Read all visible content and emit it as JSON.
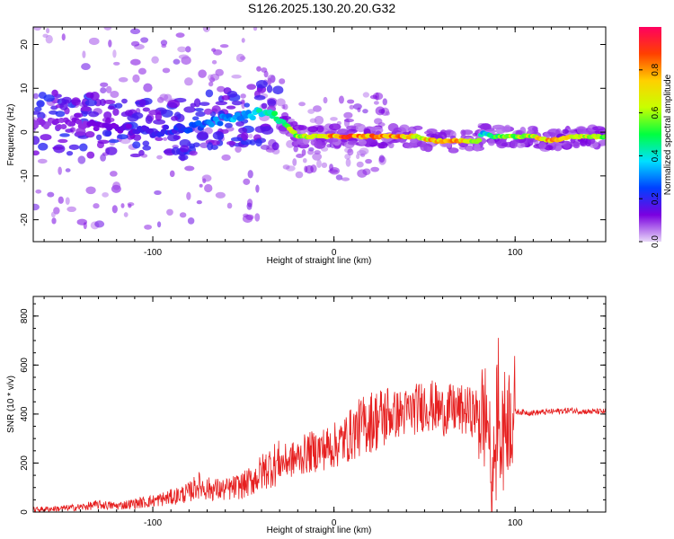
{
  "title": "S126.2025.130.20.20.G32",
  "chart_data": [
    {
      "type": "heatmap",
      "title": "S126.2025.130.20.20.G32",
      "xlabel": "Height of straight line (km)",
      "ylabel": "Frequency (Hz)",
      "xlim": [
        -166,
        150
      ],
      "ylim": [
        -25,
        24
      ],
      "x_ticks": [
        -100,
        0,
        100
      ],
      "y_ticks": [
        -20,
        -10,
        0,
        10,
        20
      ],
      "colorbar": {
        "label": "Normalized spectral amplitude",
        "range": [
          0,
          1
        ],
        "ticks": [
          0.0,
          0.2,
          0.4,
          0.6,
          0.8
        ],
        "colormap": [
          "#e8d8f8",
          "#7a00e0",
          "#0040ff",
          "#00e0ff",
          "#00ff40",
          "#c8ff00",
          "#ffd000",
          "#ff4000",
          "#ff0060"
        ]
      },
      "ridge": {
        "x": [
          -166,
          -140,
          -120,
          -100,
          -80,
          -60,
          -45,
          -38,
          -30,
          -25,
          -20,
          -15,
          -10,
          0,
          10,
          20,
          30,
          40,
          45,
          55,
          65,
          75,
          80,
          82,
          88,
          92,
          100,
          110,
          120,
          130,
          150
        ],
        "freq": [
          2,
          2,
          1,
          0,
          1,
          3,
          4,
          5,
          3,
          1,
          -1,
          -1,
          -1,
          -1,
          -1,
          -1,
          -1,
          -1,
          -1,
          -2,
          -2,
          -2,
          -2,
          0,
          -1,
          -1,
          -1,
          -1,
          -2,
          -1,
          -1
        ],
        "amplitude": [
          0.1,
          0.12,
          0.15,
          0.2,
          0.25,
          0.35,
          0.4,
          0.45,
          0.55,
          0.6,
          0.65,
          0.7,
          0.75,
          0.85,
          0.95,
          0.9,
          0.95,
          0.8,
          0.7,
          0.85,
          0.9,
          0.8,
          0.6,
          0.4,
          0.5,
          0.6,
          0.65,
          0.7,
          0.9,
          0.75,
          0.6
        ]
      }
    },
    {
      "type": "line",
      "xlabel": "Height of straight line (km)",
      "ylabel": "SNR (10 * v/v)",
      "xlim": [
        -166,
        150
      ],
      "ylim": [
        0,
        880
      ],
      "x_ticks": [
        -100,
        0,
        100
      ],
      "y_ticks": [
        0,
        200,
        400,
        600,
        800
      ],
      "color": "#e62020",
      "series": [
        {
          "x": [
            -166,
            -150,
            -140,
            -130,
            -120,
            -110,
            -100,
            -90,
            -80,
            -75,
            -70,
            -60,
            -50,
            -45,
            -40,
            -35,
            -30,
            -25,
            -20,
            -15,
            -10,
            -5,
            0,
            5,
            10,
            15,
            20,
            25,
            30,
            35,
            40,
            45,
            50,
            55,
            60,
            65,
            70,
            75,
            80,
            85,
            88,
            90,
            92,
            95,
            100,
            110,
            120,
            130,
            140,
            150
          ],
          "values": [
            10,
            15,
            20,
            30,
            25,
            35,
            45,
            60,
            80,
            110,
            95,
            90,
            110,
            130,
            160,
            190,
            200,
            210,
            220,
            240,
            250,
            260,
            270,
            290,
            320,
            350,
            370,
            380,
            395,
            400,
            405,
            420,
            440,
            430,
            410,
            420,
            415,
            410,
            400,
            380,
            100,
            420,
            330,
            380,
            410,
            405,
            410,
            415,
            410,
            410
          ]
        }
      ]
    }
  ]
}
